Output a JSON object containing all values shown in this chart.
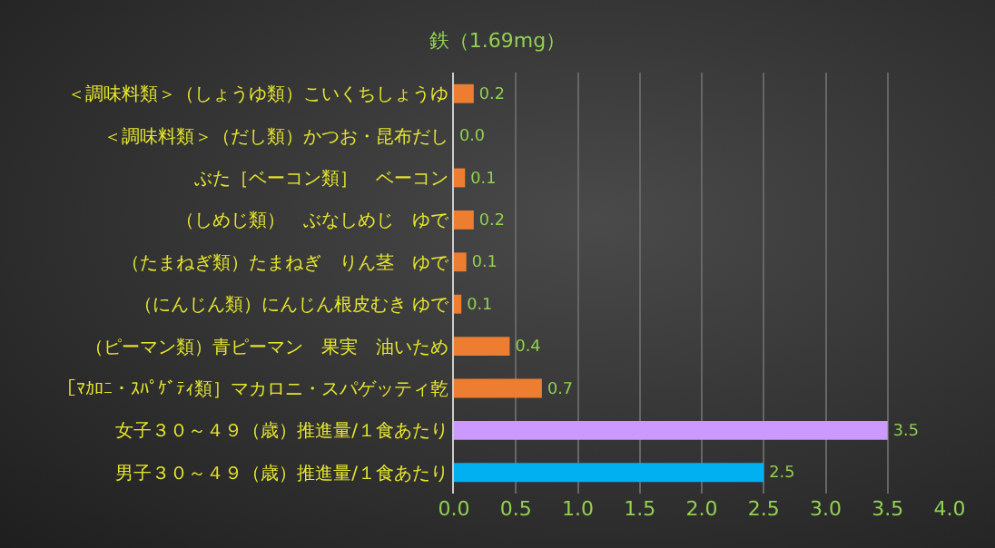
{
  "chart_data": {
    "type": "bar",
    "orientation": "horizontal",
    "title": "鉄（1.69mg）",
    "categories": [
      "＜調味料類＞（しょうゆ類）こいくちしょうゆ",
      "＜調味料類＞（だし類）かつお・昆布だし",
      "ぶた［ベーコン類］　ベーコン",
      "（しめじ類）　ぶなしめじ　ゆで",
      "（たまねぎ類）たまねぎ　りん茎　ゆで",
      "（にんじん類）にんじん根皮むき ゆで",
      "（ピーマン類）青ピーマン　果実　油いため",
      "［ﾏｶﾛﾆ・ｽﾊﾟｹﾞﾃｨ類］マカロニ・スパゲッティ乾",
      "女子３０～４９（歳）推進量/１食あたり",
      "男子３０～４９（歳）推進量/１食あたり"
    ],
    "values": [
      0.16,
      0.0,
      0.09,
      0.16,
      0.1,
      0.06,
      0.45,
      0.71,
      3.5,
      2.5
    ],
    "value_labels": [
      "0.2",
      "0.0",
      "0.1",
      "0.2",
      "0.1",
      "0.1",
      "0.4",
      "0.7",
      "3.5",
      "2.5"
    ],
    "colors": [
      "#ed7d31",
      "#ed7d31",
      "#ed7d31",
      "#ed7d31",
      "#ed7d31",
      "#ed7d31",
      "#ed7d31",
      "#ed7d31",
      "#cc99ff",
      "#00b0f0"
    ],
    "xlim": [
      0,
      4.0
    ],
    "xticks": [
      {
        "value": 0,
        "label": "0.0"
      },
      {
        "value": 0.5,
        "label": "0.5"
      },
      {
        "value": 1,
        "label": "1.0"
      },
      {
        "value": 1.5,
        "label": "1.5"
      },
      {
        "value": 2,
        "label": "2.0"
      },
      {
        "value": 2.5,
        "label": "2.5"
      },
      {
        "value": 3,
        "label": "3.0"
      },
      {
        "value": 3.5,
        "label": "3.5"
      },
      {
        "value": 4,
        "label": "4.0"
      }
    ],
    "grid": "x"
  }
}
